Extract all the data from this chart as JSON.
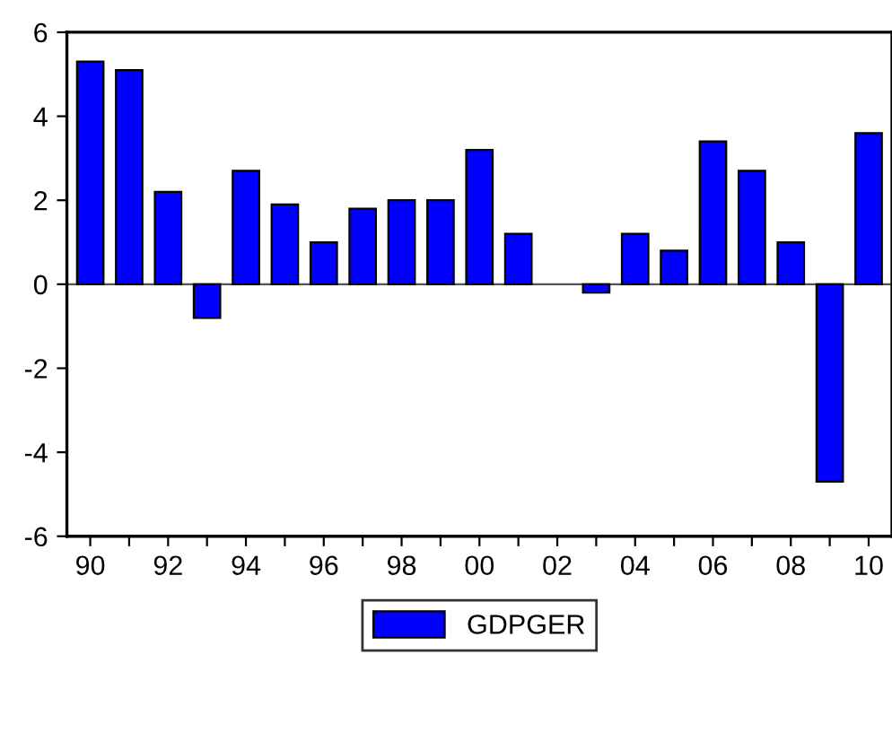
{
  "chart_data": {
    "type": "bar",
    "categories": [
      "90",
      null,
      "92",
      null,
      "94",
      null,
      "96",
      null,
      "98",
      null,
      "00",
      null,
      "02",
      null,
      "04",
      null,
      "06",
      null,
      "08",
      null,
      "10"
    ],
    "series": [
      {
        "name": "GDPGER",
        "color": "#0000ff",
        "values": [
          5.3,
          5.1,
          2.2,
          -0.8,
          2.7,
          1.9,
          1.0,
          1.8,
          2.0,
          2.0,
          3.2,
          1.2,
          null,
          -0.2,
          1.2,
          0.8,
          3.4,
          2.7,
          1.0,
          -4.7,
          3.6
        ]
      }
    ],
    "ylim": [
      -6,
      6
    ],
    "yticks": [
      -6,
      -4,
      -2,
      0,
      2,
      4,
      6
    ],
    "ref_lines": [
      {
        "axis": "y",
        "value": 0,
        "color": "#555555"
      }
    ],
    "grid": false,
    "legend": "bottom"
  }
}
